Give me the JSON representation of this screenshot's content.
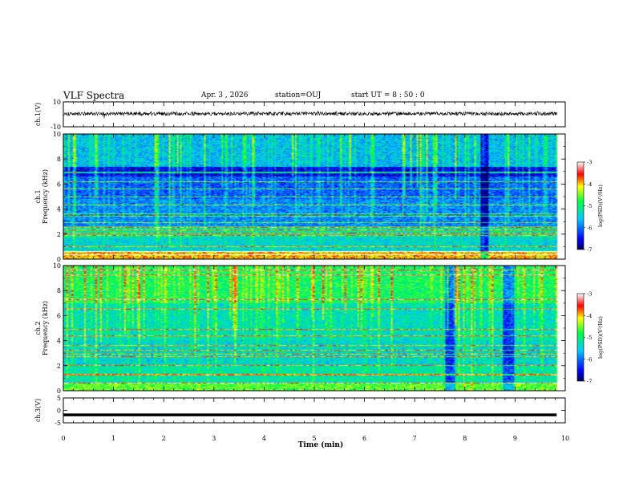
{
  "header": {
    "title": "VLF Spectra",
    "date": "Apr. 3 , 2026",
    "station": "station=OUJ",
    "start_ut": "start UT = 8 : 50 : 0"
  },
  "chart_data": [
    {
      "type": "line",
      "name": "ch1-waveform",
      "ylabel": "ch.1(V)",
      "yticks": [
        "10",
        "-10"
      ],
      "ylim": [
        -10,
        10
      ],
      "x_range_min": [
        0,
        9.83
      ],
      "level_v": 0.5,
      "noise_v": 1.5
    },
    {
      "type": "heatmap",
      "name": "ch1-spectrogram",
      "ylabel_channel": "ch.1",
      "ylabel": "Frequency (kHz)",
      "yticks": [
        "0",
        "2",
        "4",
        "6",
        "8",
        "10"
      ],
      "ylim_khz": [
        0,
        10
      ],
      "x_range_min": [
        0,
        9.83
      ],
      "colorbar": {
        "label": "log(PSD)(V²/Hz)",
        "ticks": [
          "-3",
          "-4",
          "-5",
          "-6",
          "-7"
        ],
        "range": [
          -7,
          -3
        ]
      },
      "background_levels": [
        {
          "f_khz": [
            0,
            0.6
          ],
          "log_psd": -4.0
        },
        {
          "f_khz": [
            0.6,
            1.7
          ],
          "log_psd": -5.4
        },
        {
          "f_khz": [
            1.7,
            2.6
          ],
          "log_psd": -5.2
        },
        {
          "f_khz": [
            2.6,
            4.8
          ],
          "log_psd": -5.9
        },
        {
          "f_khz": [
            4.8,
            6.6
          ],
          "log_psd": -6.1
        },
        {
          "f_khz": [
            6.6,
            7.4
          ],
          "log_psd": -6.6
        },
        {
          "f_khz": [
            7.4,
            10
          ],
          "log_psd": -5.6
        }
      ],
      "tone_lines_khz": [
        0.3,
        0.55,
        1.0,
        1.9,
        2.05,
        2.3,
        2.5,
        2.9,
        3.4,
        3.6,
        4.35,
        5.0,
        5.6,
        6.2,
        6.9,
        7.0
      ],
      "quiet_intervals_min": [
        [
          8.3,
          8.45
        ]
      ]
    },
    {
      "type": "heatmap",
      "name": "ch2-spectrogram",
      "ylabel_channel": "ch.2",
      "ylabel": "Frequency (kHz)",
      "yticks": [
        "0",
        "2",
        "4",
        "6",
        "8",
        "10"
      ],
      "ylim_khz": [
        0,
        10
      ],
      "x_range_min": [
        0,
        9.83
      ],
      "colorbar": {
        "label": "log(PSD)(V²/Hz)",
        "ticks": [
          "-3",
          "-4",
          "-5",
          "-6",
          "-7"
        ],
        "range": [
          -7,
          -3
        ]
      },
      "background_levels": [
        {
          "f_khz": [
            0,
            0.6
          ],
          "log_psd": -4.6
        },
        {
          "f_khz": [
            0.6,
            2.0
          ],
          "log_psd": -5.2
        },
        {
          "f_khz": [
            2.0,
            4.0
          ],
          "log_psd": -5.4
        },
        {
          "f_khz": [
            4.0,
            7.0
          ],
          "log_psd": -5.3
        },
        {
          "f_khz": [
            7.0,
            10
          ],
          "log_psd": -4.9
        }
      ],
      "tone_lines_khz": [
        0.6,
        1.2,
        1.3,
        2.0,
        2.7,
        2.9,
        3.2,
        3.6,
        4.4,
        4.9,
        6.5,
        7.3,
        9.3,
        9.7
      ],
      "quiet_intervals_min": [
        [
          7.6,
          7.78
        ],
        [
          8.75,
          8.95
        ]
      ]
    },
    {
      "type": "line",
      "name": "ch3-waveform",
      "ylabel": "ch.3(V)",
      "yticks": [
        "5",
        "0",
        "-5"
      ],
      "ylim": [
        -5,
        5
      ],
      "x_range_min": [
        0,
        9.83
      ],
      "level_v": -1.8
    }
  ],
  "xaxis": {
    "label": "Time (min)",
    "ticks": [
      "0",
      "1",
      "2",
      "3",
      "4",
      "5",
      "6",
      "7",
      "8",
      "9",
      "10"
    ],
    "range": [
      0,
      10
    ]
  },
  "colors": {
    "frame": "#000000",
    "background": "#ffffff"
  }
}
